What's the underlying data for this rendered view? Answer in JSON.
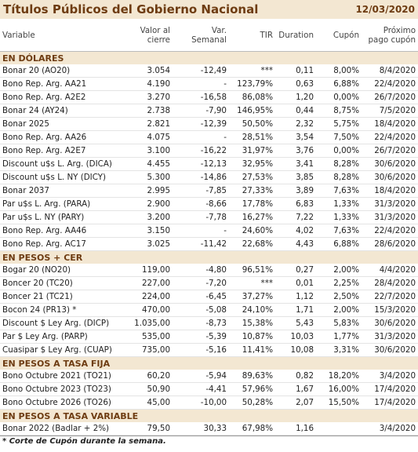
{
  "header": {
    "title": "Títulos Públicos del Gobierno Nacional",
    "date": "12/03/2020"
  },
  "table": {
    "columns": [
      "Variable",
      "Valor al cierre",
      "Var. Semanal",
      "TIR",
      "Duration",
      "Cupón",
      "Próximo pago cupón"
    ],
    "sections": [
      {
        "title": "EN DÓLARES",
        "rows": [
          [
            "Bonar 20 (AO20)",
            "3.054",
            "-12,49",
            "***",
            "0,11",
            "8,00%",
            "8/4/2020"
          ],
          [
            "Bono Rep. Arg. AA21",
            "4.190",
            "-",
            "123,79%",
            "0,63",
            "6,88%",
            "22/4/2020"
          ],
          [
            "Bono Rep. Arg. A2E2",
            "3.270",
            "-16,58",
            "86,08%",
            "1,20",
            "0,00%",
            "26/7/2020"
          ],
          [
            "Bonar 24 (AY24)",
            "2.738",
            "-7,90",
            "146,95%",
            "0,44",
            "8,75%",
            "7/5/2020"
          ],
          [
            "Bonar 2025",
            "2.821",
            "-12,39",
            "50,50%",
            "2,32",
            "5,75%",
            "18/4/2020"
          ],
          [
            "Bono Rep. Arg. AA26",
            "4.075",
            "-",
            "28,51%",
            "3,54",
            "7,50%",
            "22/4/2020"
          ],
          [
            "Bono Rep. Arg. A2E7",
            "3.100",
            "-16,22",
            "31,97%",
            "3,76",
            "0,00%",
            "26/7/2020"
          ],
          [
            "Discount u$s L. Arg. (DICA)",
            "4.455",
            "-12,13",
            "32,95%",
            "3,41",
            "8,28%",
            "30/6/2020"
          ],
          [
            "Discount u$s L. NY (DICY)",
            "5.300",
            "-14,86",
            "27,53%",
            "3,85",
            "8,28%",
            "30/6/2020"
          ],
          [
            "Bonar 2037",
            "2.995",
            "-7,85",
            "27,33%",
            "3,89",
            "7,63%",
            "18/4/2020"
          ],
          [
            "Par u$s L. Arg. (PARA)",
            "2.900",
            "-8,66",
            "17,78%",
            "6,83",
            "1,33%",
            "31/3/2020"
          ],
          [
            "Par u$s L. NY (PARY)",
            "3.200",
            "-7,78",
            "16,27%",
            "7,22",
            "1,33%",
            "31/3/2020"
          ],
          [
            "Bono Rep. Arg. AA46",
            "3.150",
            "-",
            "24,60%",
            "4,02",
            "7,63%",
            "22/4/2020"
          ],
          [
            "Bono Rep. Arg. AC17",
            "3.025",
            "-11,42",
            "22,68%",
            "4,43",
            "6,88%",
            "28/6/2020"
          ]
        ]
      },
      {
        "title": "EN PESOS + CER",
        "rows": [
          [
            "Bogar 20 (NO20)",
            "119,00",
            "-4,80",
            "96,51%",
            "0,27",
            "2,00%",
            "4/4/2020"
          ],
          [
            "Boncer 20 (TC20)",
            "227,00",
            "-7,20",
            "***",
            "0,01",
            "2,25%",
            "28/4/2020"
          ],
          [
            "Boncer 21 (TC21)",
            "224,00",
            "-6,45",
            "37,27%",
            "1,12",
            "2,50%",
            "22/7/2020"
          ],
          [
            "Bocon 24 (PR13) *",
            "470,00",
            "-5,08",
            "24,10%",
            "1,71",
            "2,00%",
            "15/3/2020"
          ],
          [
            "Discount $ Ley Arg. (DICP)",
            "1.035,00",
            "-8,73",
            "15,38%",
            "5,43",
            "5,83%",
            "30/6/2020"
          ],
          [
            "Par $ Ley Arg. (PARP)",
            "535,00",
            "-5,39",
            "10,87%",
            "10,03",
            "1,77%",
            "31/3/2020"
          ],
          [
            "Cuasipar $ Ley Arg. (CUAP)",
            "735,00",
            "-5,16",
            "11,41%",
            "10,08",
            "3,31%",
            "30/6/2020"
          ]
        ]
      },
      {
        "title": "EN PESOS A TASA FIJA",
        "rows": [
          [
            "Bono Octubre 2021 (TO21)",
            "60,20",
            "-5,94",
            "89,63%",
            "0,82",
            "18,20%",
            "3/4/2020"
          ],
          [
            "Bono Octubre 2023 (TO23)",
            "50,90",
            "-4,41",
            "57,96%",
            "1,67",
            "16,00%",
            "17/4/2020"
          ],
          [
            "Bono Octubre 2026 (TO26)",
            "45,00",
            "-10,00",
            "50,28%",
            "2,07",
            "15,50%",
            "17/4/2020"
          ]
        ]
      },
      {
        "title": "EN PESOS A TASA VARIABLE",
        "rows": [
          [
            "Bonar 2022 (Badlar + 2%)",
            "79,50",
            "30,33",
            "67,98%",
            "1,16",
            "",
            "3/4/2020"
          ]
        ]
      }
    ],
    "footnote": "* Corte de Cupón durante la semana."
  }
}
